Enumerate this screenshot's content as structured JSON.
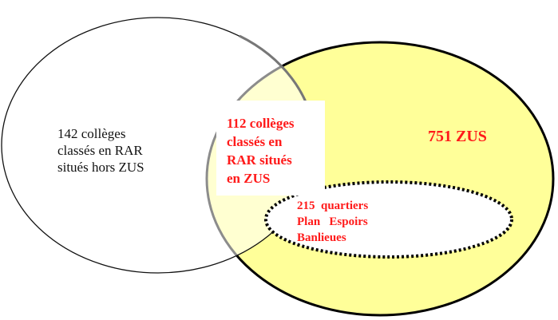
{
  "colors": {
    "zus_fill": "#ffff99",
    "text_red": "#ff1a1a"
  },
  "sets": {
    "rar_outside": {
      "lines": [
        "142 collèges",
        "classés en RAR",
        "situés hors ZUS"
      ]
    },
    "intersection": {
      "lines": [
        "112 collèges",
        "classés en",
        "RAR situés",
        "en ZUS"
      ]
    },
    "zus": {
      "label": "751 ZUS"
    },
    "peb": {
      "lines": [
        "215  quartiers",
        "Plan   Espoirs",
        "Banlieues"
      ]
    }
  }
}
